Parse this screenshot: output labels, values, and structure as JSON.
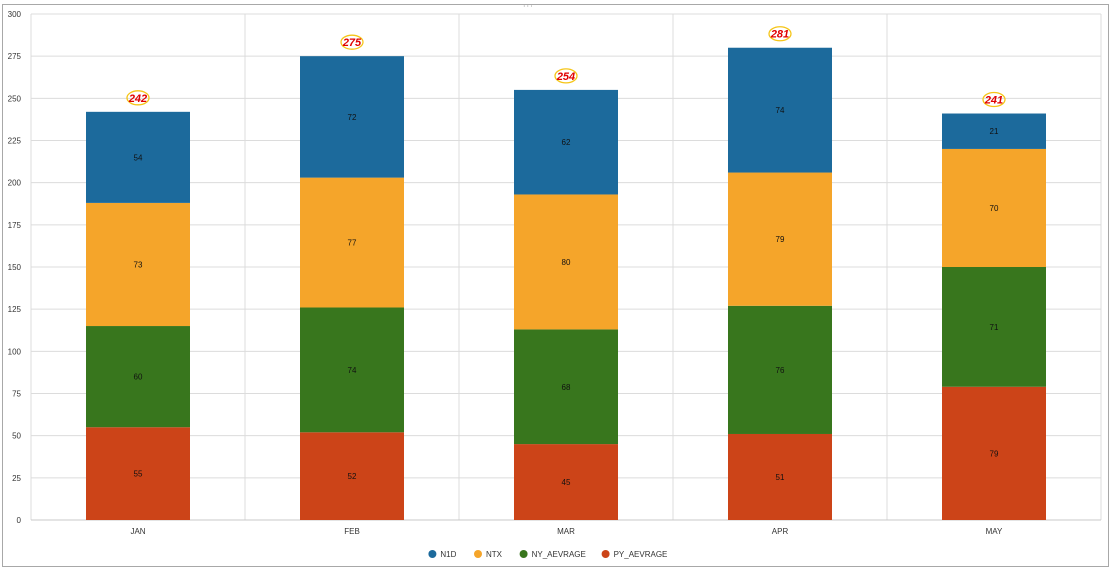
{
  "chart_data": {
    "type": "bar",
    "stacked": true,
    "categories": [
      "JAN",
      "FEB",
      "MAR",
      "APR",
      "MAY"
    ],
    "series": [
      {
        "name": "PY_AEVRAGE",
        "color": "#cc4418",
        "values": [
          55,
          52,
          45,
          51,
          79
        ]
      },
      {
        "name": "NY_AEVRAGE",
        "color": "#38761d",
        "values": [
          60,
          74,
          68,
          76,
          71
        ]
      },
      {
        "name": "NTX",
        "color": "#f5a52a",
        "values": [
          73,
          77,
          80,
          79,
          70
        ]
      },
      {
        "name": "N1D",
        "color": "#1c6a9c",
        "values": [
          54,
          72,
          62,
          74,
          21
        ]
      }
    ],
    "totals": [
      "242",
      "275",
      "254",
      "281",
      "241"
    ],
    "ylim": [
      0,
      300
    ],
    "yticks": [
      "0",
      "25",
      "50",
      "75",
      "100",
      "125",
      "150",
      "175",
      "200",
      "225",
      "250",
      "275",
      "300"
    ],
    "grid": true,
    "legend_position": "bottom",
    "legend_order": [
      "N1D",
      "NTX",
      "NY_AEVRAGE",
      "PY_AEVRAGE"
    ],
    "total_label_color": "#e00000",
    "total_highlight_color": "#f5c518"
  }
}
